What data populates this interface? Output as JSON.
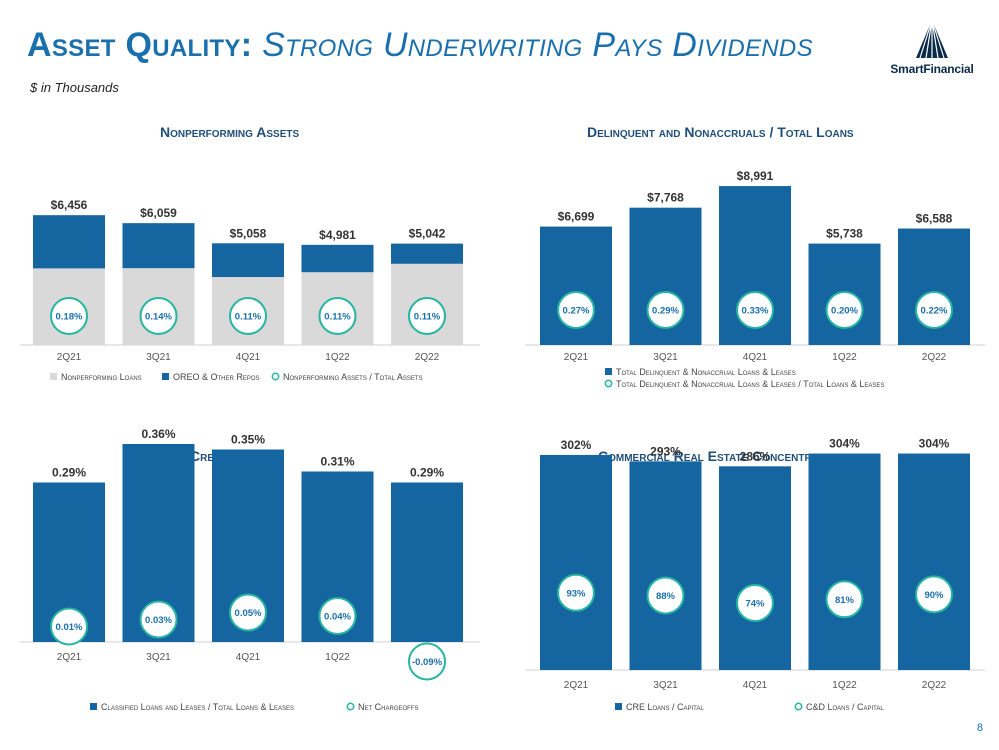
{
  "header": {
    "title_main": "Asset Quality:",
    "title_sub": "Strong Underwriting Pays Dividends",
    "subtitle": "$ in Thousands",
    "logo_text": "SmartFinancial",
    "page_number": "8"
  },
  "colors": {
    "navy": "#1565a0",
    "gray": "#d9d9d9",
    "teal": "#26b5a0",
    "title_blue": "#1a6fad"
  },
  "chart_data": [
    {
      "id": "npa",
      "type": "bar",
      "title": "Nonperforming Assets",
      "categories": [
        "2Q21",
        "3Q21",
        "4Q21",
        "1Q22",
        "2Q22"
      ],
      "stacked": true,
      "totals": [
        "$6,456",
        "$6,059",
        "$5,058",
        "$4,981",
        "$5,042"
      ],
      "series": [
        {
          "name": "Nonperforming Loans",
          "values": [
            3810,
            3820,
            3380,
            3620,
            4040
          ]
        },
        {
          "name": "OREO & Other Repos",
          "values": [
            2646,
            2239,
            1678,
            1361,
            1002
          ]
        }
      ],
      "ratio": {
        "name": "Nonperforming Assets / Total Assets",
        "labels": [
          "0.18%",
          "0.14%",
          "0.11%",
          "0.11%",
          "0.11%"
        ]
      },
      "ylim": [
        0,
        9200
      ],
      "legend": "bottom"
    },
    {
      "id": "delinq",
      "type": "bar",
      "title": "Delinquent and Nonaccruals / Total Loans",
      "categories": [
        "2Q21",
        "3Q21",
        "4Q21",
        "1Q22",
        "2Q22"
      ],
      "totals": [
        "$6,699",
        "$7,768",
        "$8,991",
        "$5,738",
        "$6,588"
      ],
      "series": [
        {
          "name": "Total Delinquent & Nonaccrual Loans & Leases",
          "values": [
            6699,
            7768,
            8991,
            5738,
            6588
          ]
        }
      ],
      "ratio": {
        "name": "Total Delinquent & Nonaccrual Loans & Leases / Total Loans & Leases",
        "labels": [
          "0.27%",
          "0.29%",
          "0.33%",
          "0.20%",
          "0.22%"
        ]
      },
      "ylim": [
        0,
        9900
      ],
      "legend": "bottom"
    },
    {
      "id": "credit",
      "type": "bar",
      "title": "Credit Quality",
      "categories": [
        "2Q21",
        "3Q21",
        "4Q21",
        "1Q22",
        "2Q22"
      ],
      "totals": [
        "0.29%",
        "0.36%",
        "0.35%",
        "0.31%",
        "0.29%"
      ],
      "series": [
        {
          "name": "Classified Loans and Leases / Total Loans & Leases",
          "values": [
            0.29,
            0.36,
            0.35,
            0.31,
            0.29
          ]
        }
      ],
      "ratio": {
        "name": "Net Chargeoffs",
        "labels": [
          "0.01%",
          "0.03%",
          "0.05%",
          "0.04%",
          "-0.09%"
        ],
        "values": [
          0.01,
          0.03,
          0.05,
          0.04,
          -0.09
        ]
      },
      "ylim": [
        0,
        0.4
      ],
      "legend": "bottom"
    },
    {
      "id": "cre",
      "type": "bar",
      "title": "Commercial Real Estate Concentration",
      "categories": [
        "2Q21",
        "3Q21",
        "4Q21",
        "1Q22",
        "2Q22"
      ],
      "totals": [
        "302%",
        "293%",
        "286%",
        "304%",
        "304%"
      ],
      "series": [
        {
          "name": "CRE Loans / Capital",
          "values": [
            302,
            293,
            286,
            304,
            304
          ]
        }
      ],
      "ratio": {
        "name": "C&D Loans / Capital",
        "labels": [
          "93%",
          "88%",
          "74%",
          "81%",
          "90%"
        ],
        "values": [
          93,
          88,
          74,
          81,
          90
        ]
      },
      "ylim": [
        0,
        330
      ],
      "legend": "bottom"
    }
  ]
}
